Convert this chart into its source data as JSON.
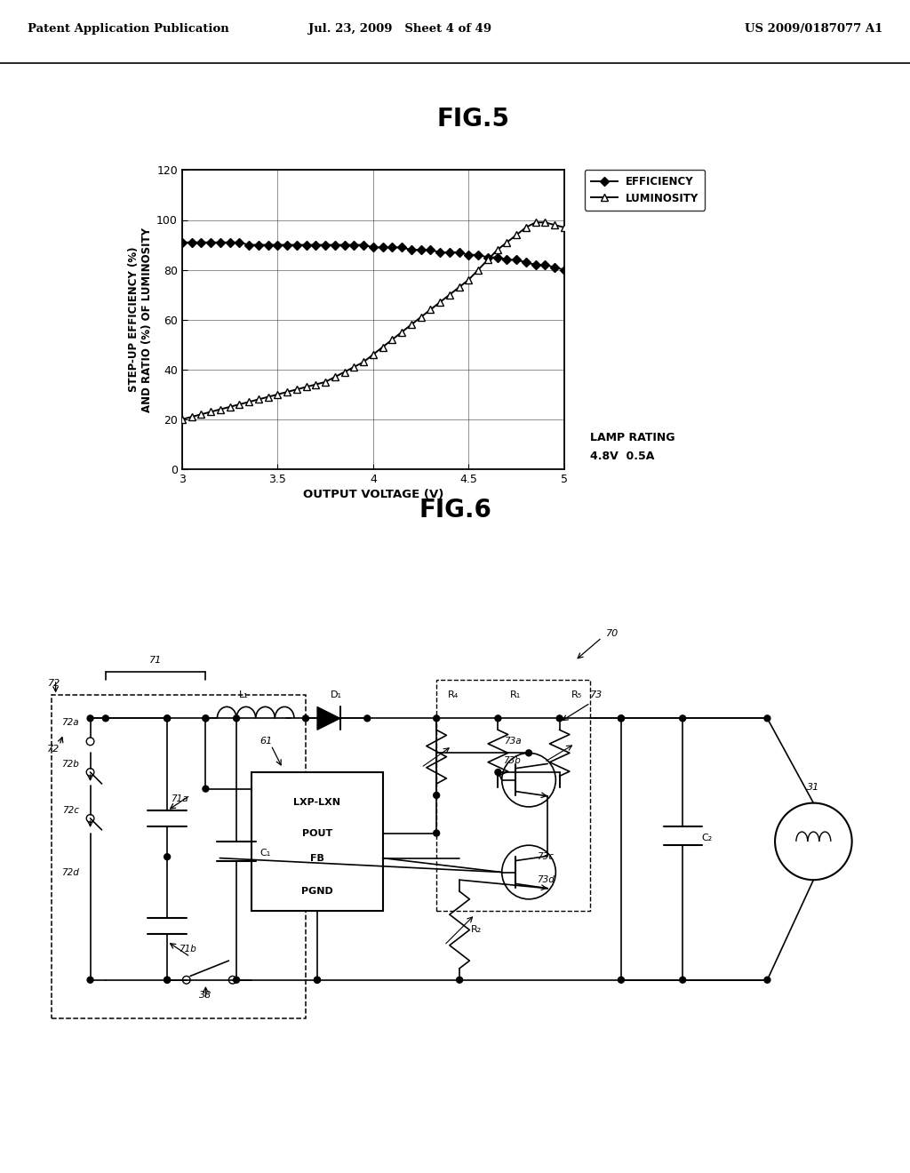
{
  "header_left": "Patent Application Publication",
  "header_mid": "Jul. 23, 2009   Sheet 4 of 49",
  "header_right": "US 2009/0187077 A1",
  "fig5_title": "FIG.5",
  "fig6_title": "FIG.6",
  "efficiency_x": [
    3.0,
    3.05,
    3.1,
    3.15,
    3.2,
    3.25,
    3.3,
    3.35,
    3.4,
    3.45,
    3.5,
    3.55,
    3.6,
    3.65,
    3.7,
    3.75,
    3.8,
    3.85,
    3.9,
    3.95,
    4.0,
    4.05,
    4.1,
    4.15,
    4.2,
    4.25,
    4.3,
    4.35,
    4.4,
    4.45,
    4.5,
    4.55,
    4.6,
    4.65,
    4.7,
    4.75,
    4.8,
    4.85,
    4.9,
    4.95,
    5.0
  ],
  "efficiency_y": [
    91,
    91,
    91,
    91,
    91,
    91,
    91,
    90,
    90,
    90,
    90,
    90,
    90,
    90,
    90,
    90,
    90,
    90,
    90,
    90,
    89,
    89,
    89,
    89,
    88,
    88,
    88,
    87,
    87,
    87,
    86,
    86,
    85,
    85,
    84,
    84,
    83,
    82,
    82,
    81,
    80
  ],
  "luminosity_x": [
    3.0,
    3.05,
    3.1,
    3.15,
    3.2,
    3.25,
    3.3,
    3.35,
    3.4,
    3.45,
    3.5,
    3.55,
    3.6,
    3.65,
    3.7,
    3.75,
    3.8,
    3.85,
    3.9,
    3.95,
    4.0,
    4.05,
    4.1,
    4.15,
    4.2,
    4.25,
    4.3,
    4.35,
    4.4,
    4.45,
    4.5,
    4.55,
    4.6,
    4.65,
    4.7,
    4.75,
    4.8,
    4.85,
    4.9,
    4.95,
    5.0
  ],
  "luminosity_y": [
    20,
    21,
    22,
    23,
    24,
    25,
    26,
    27,
    28,
    29,
    30,
    31,
    32,
    33,
    34,
    35,
    37,
    39,
    41,
    43,
    46,
    49,
    52,
    55,
    58,
    61,
    64,
    67,
    70,
    73,
    76,
    80,
    84,
    88,
    91,
    94,
    97,
    99,
    99,
    98,
    97
  ],
  "xlabel": "OUTPUT VOLTAGE (V)",
  "ylabel": "STEP-UP EFFICIENCY (%)\nAND RATIO (%) OF LUMINOSITY",
  "xlim": [
    3,
    5.0
  ],
  "ylim": [
    0,
    120
  ],
  "yticks": [
    0,
    20,
    40,
    60,
    80,
    100,
    120
  ],
  "xticks": [
    3,
    3.5,
    4,
    4.5,
    5
  ],
  "xtick_labels": [
    "3",
    "3.5",
    "4",
    "4.5",
    "5"
  ],
  "legend_efficiency": "EFFICIENCY",
  "legend_luminosity": "LUMINOSITY",
  "lamp_rating_line1": "LAMP RATING",
  "lamp_rating_line2": "4.8V  0.5A",
  "bg_color": "#ffffff"
}
